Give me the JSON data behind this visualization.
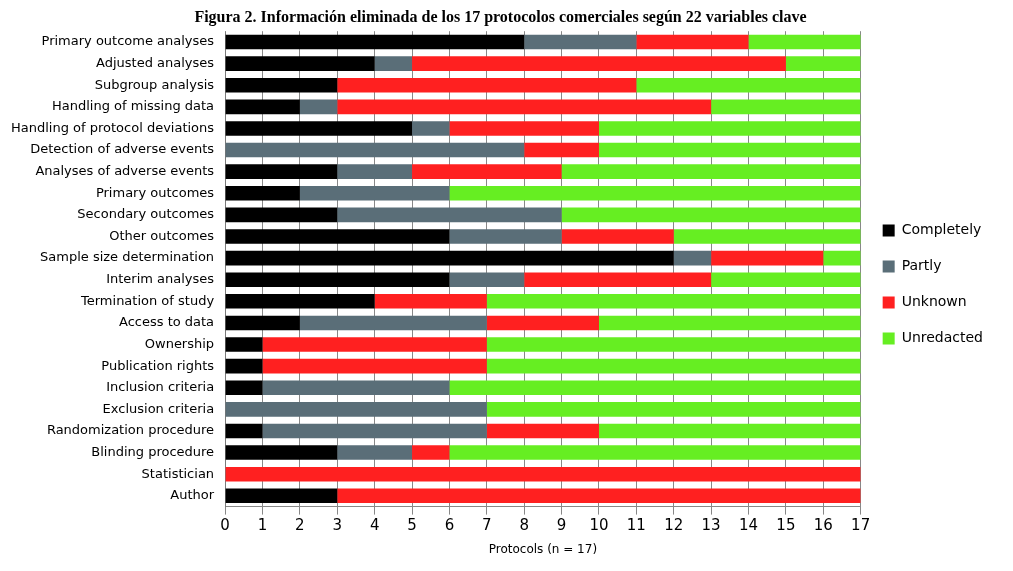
{
  "chart_data": {
    "type": "bar",
    "orientation": "horizontal",
    "stacked": true,
    "title": "Figura 2. Información eliminada de los 17 protocolos comerciales según 22 variables clave",
    "xlabel": "Protocols (n = 17)",
    "categories": [
      "Primary outcome analyses",
      "Adjusted analyses",
      "Subgroup analysis",
      "Handling of missing data",
      "Handling of protocol deviations",
      "Detection of adverse events",
      "Analyses of adverse events",
      "Primary outcomes",
      "Secondary outcomes",
      "Other outcomes",
      "Sample size determination",
      "Interim analyses",
      "Termination of study",
      "Access to data",
      "Ownership",
      "Publication rights",
      "Inclusion criteria",
      "Exclusion criteria",
      "Randomization procedure",
      "Blinding procedure",
      "Statistician",
      "Author"
    ],
    "series": [
      {
        "name": "Completely",
        "color": "#000000",
        "values": [
          8,
          4,
          3,
          2,
          5,
          0,
          3,
          2,
          3,
          6,
          12,
          6,
          4,
          2,
          1,
          1,
          1,
          0,
          1,
          3,
          0,
          3
        ]
      },
      {
        "name": "Partly",
        "color": "#5a6e78",
        "values": [
          3,
          1,
          0,
          1,
          1,
          8,
          2,
          4,
          6,
          3,
          1,
          2,
          0,
          5,
          0,
          0,
          5,
          7,
          6,
          2,
          0,
          0
        ]
      },
      {
        "name": "Unknown",
        "color": "#ff2020",
        "values": [
          3,
          10,
          8,
          10,
          4,
          2,
          4,
          0,
          0,
          3,
          3,
          5,
          3,
          3,
          6,
          6,
          0,
          0,
          3,
          1,
          17,
          14
        ]
      },
      {
        "name": "Unredacted",
        "color": "#66ee22",
        "values": [
          3,
          2,
          6,
          4,
          7,
          7,
          8,
          11,
          8,
          5,
          1,
          4,
          10,
          7,
          10,
          10,
          11,
          10,
          7,
          11,
          0,
          0
        ]
      }
    ],
    "xlim": [
      0,
      17
    ],
    "xticks": [
      0,
      1,
      2,
      3,
      4,
      5,
      6,
      7,
      8,
      9,
      10,
      11,
      12,
      13,
      14,
      15,
      16,
      17
    ],
    "grid": "x",
    "legend": "right"
  }
}
